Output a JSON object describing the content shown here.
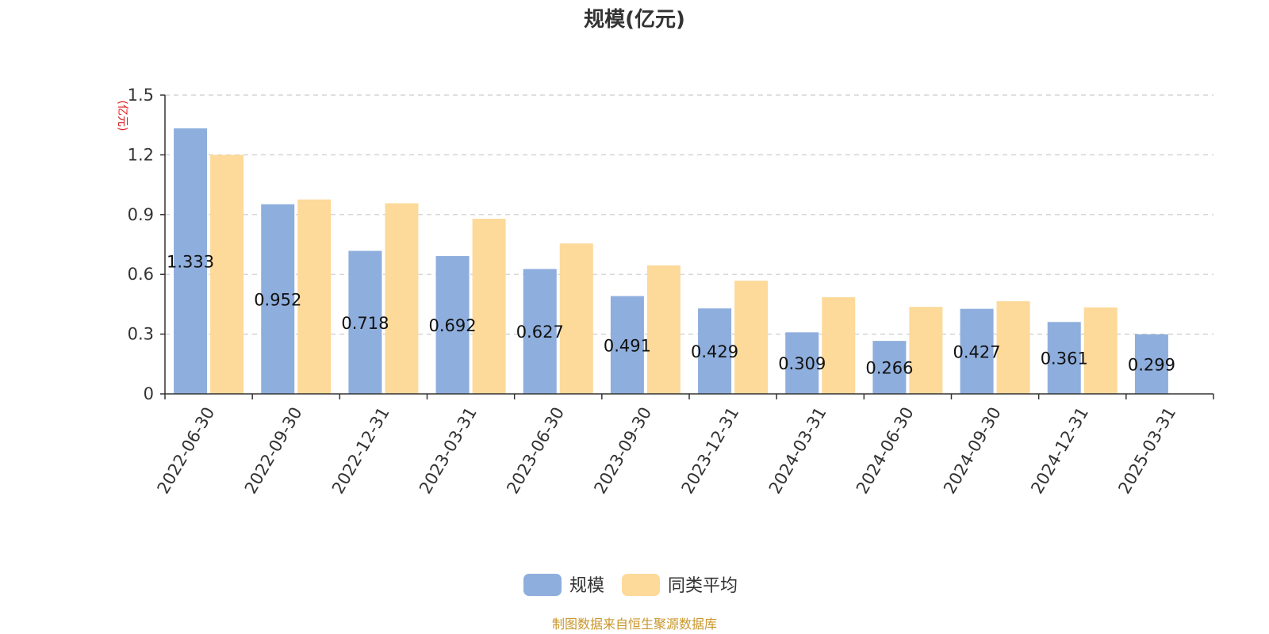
{
  "chart_data": {
    "type": "bar",
    "title": "规模(亿元)",
    "ylabel": "(亿元)",
    "ylim": [
      0,
      1.5
    ],
    "yticks": [
      "0",
      "0.3",
      "0.6",
      "0.9",
      "1.2",
      "1.5"
    ],
    "grid": true,
    "legend_position": "bottom",
    "categories": [
      "2022-06-30",
      "2022-09-30",
      "2022-12-31",
      "2023-03-31",
      "2023-06-30",
      "2023-09-30",
      "2023-12-31",
      "2024-03-31",
      "2024-06-30",
      "2024-09-30",
      "2024-12-31",
      "2025-03-31"
    ],
    "series": [
      {
        "name": "规模",
        "color": "#8eaedd",
        "values": [
          1.333,
          0.952,
          0.718,
          0.692,
          0.627,
          0.491,
          0.429,
          0.309,
          0.266,
          0.427,
          0.361,
          0.299
        ],
        "labels": [
          "1.333",
          "0.952",
          "0.718",
          "0.692",
          "0.627",
          "0.491",
          "0.429",
          "0.309",
          "0.266",
          "0.427",
          "0.361",
          "0.299"
        ]
      },
      {
        "name": "同类平均",
        "color": "#fdd99a",
        "values": [
          1.2,
          0.976,
          0.957,
          0.879,
          0.755,
          0.645,
          0.568,
          0.485,
          0.437,
          0.465,
          0.434,
          null
        ]
      }
    ]
  },
  "footer": {
    "source": "制图数据来自恒生聚源数据库"
  },
  "colors": {
    "unit": "#e02020",
    "source": "#c8962a",
    "axis": "#333333",
    "grid": "#cccccc"
  }
}
